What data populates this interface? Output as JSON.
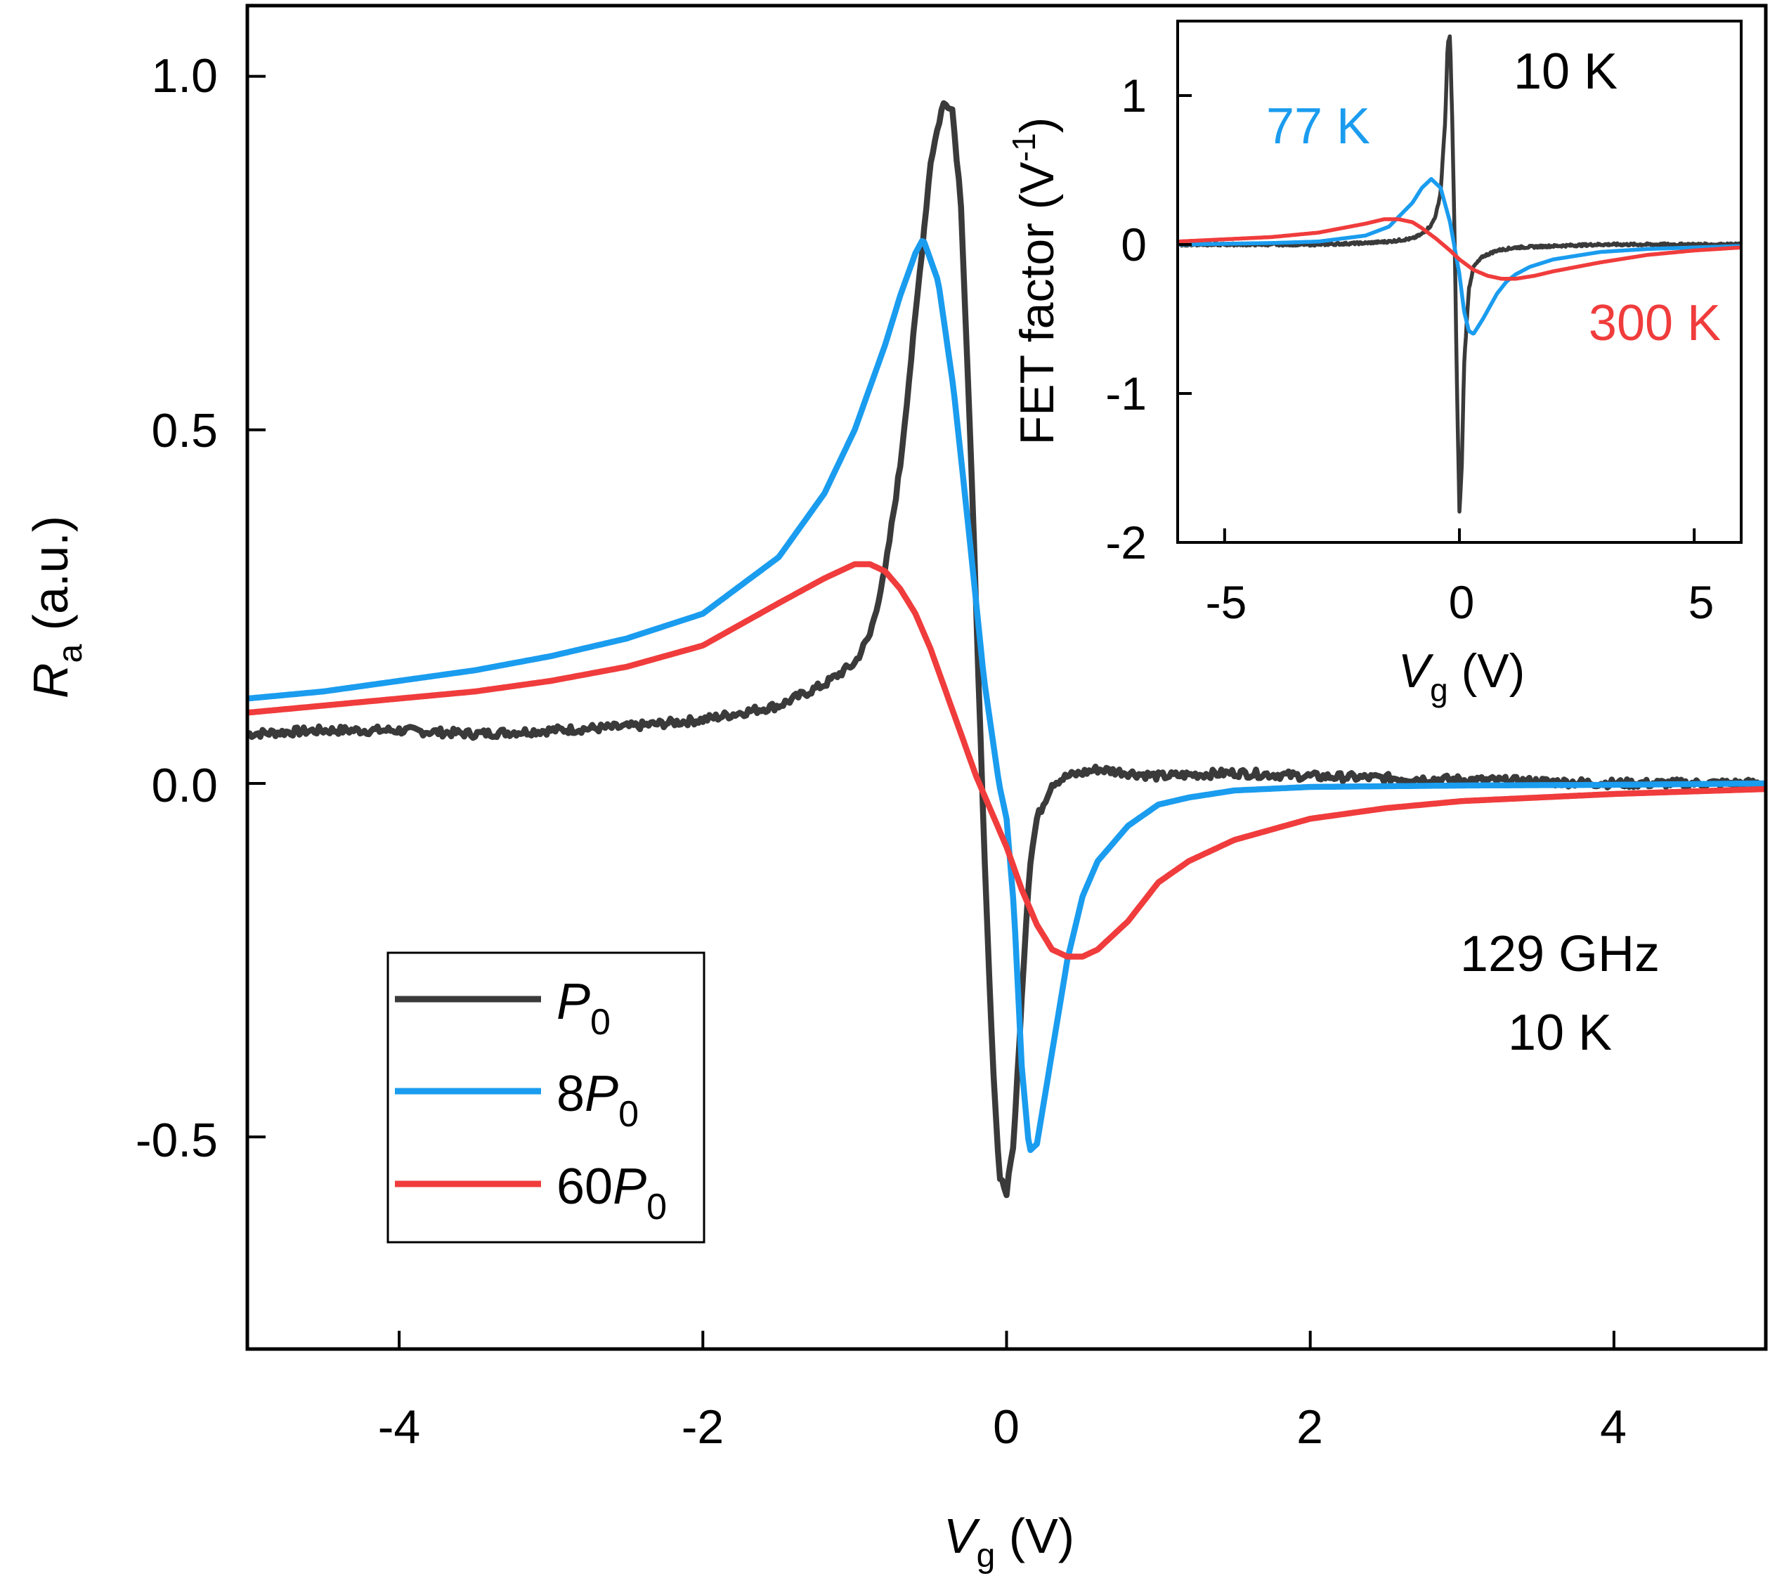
{
  "chart_data": [
    {
      "type": "line",
      "panel": "main",
      "xlabel": {
        "main": "V",
        "sub": "g",
        "unit": " (V)"
      },
      "ylabel": {
        "main": "R",
        "sub": "a",
        "unit": " (a.u.)"
      },
      "xlim": [
        -5,
        5
      ],
      "ylim": [
        -0.8,
        1.1
      ],
      "xticks": [
        -4,
        -2,
        0,
        2,
        4
      ],
      "xtick_labels": [
        "-4",
        "-2",
        "0",
        "2",
        "4"
      ],
      "yticks": [
        -0.5,
        0.0,
        0.5,
        1.0
      ],
      "ytick_labels": [
        "-0.5",
        "0.0",
        "0.5",
        "1.0"
      ],
      "annotation": {
        "line1": "129 GHz",
        "line2": "10 K"
      },
      "legend": {
        "position": "bottom-left",
        "entries": [
          {
            "prefix": "",
            "sym": "P",
            "sub": "0"
          },
          {
            "prefix": "8",
            "sym": "P",
            "sub": "0"
          },
          {
            "prefix": "60",
            "sym": "P",
            "sub": "0"
          }
        ]
      },
      "series": [
        {
          "name": "P0",
          "color": "#3a3a3a",
          "noise": 0.006,
          "x": [
            -5,
            -4.5,
            -4,
            -3.5,
            -3,
            -2.5,
            -2,
            -1.5,
            -1.2,
            -1.0,
            -0.9,
            -0.8,
            -0.7,
            -0.6,
            -0.5,
            -0.42,
            -0.36,
            -0.3,
            -0.25,
            -0.2,
            -0.15,
            -0.1,
            -0.05,
            0.0,
            0.05,
            0.1,
            0.15,
            0.2,
            0.3,
            0.4,
            0.5,
            0.6,
            0.8,
            1.0,
            1.5,
            2.0,
            3.0,
            4.0,
            5.0
          ],
          "y": [
            0.07,
            0.075,
            0.075,
            0.07,
            0.075,
            0.08,
            0.09,
            0.11,
            0.14,
            0.17,
            0.21,
            0.3,
            0.45,
            0.66,
            0.88,
            0.96,
            0.96,
            0.82,
            0.55,
            0.25,
            -0.08,
            -0.35,
            -0.55,
            -0.58,
            -0.5,
            -0.3,
            -0.12,
            -0.05,
            0.0,
            0.01,
            0.015,
            0.02,
            0.015,
            0.01,
            0.015,
            0.01,
            0.005,
            0.0,
            0.0
          ]
        },
        {
          "name": "8P0",
          "color": "#1a9cef",
          "noise": 0,
          "x": [
            -5,
            -4.5,
            -4,
            -3.5,
            -3,
            -2.5,
            -2,
            -1.5,
            -1.2,
            -1.0,
            -0.8,
            -0.7,
            -0.6,
            -0.55,
            -0.45,
            -0.35,
            -0.25,
            -0.15,
            -0.05,
            0.0,
            0.05,
            0.1,
            0.15,
            0.2,
            0.3,
            0.4,
            0.5,
            0.6,
            0.8,
            1.0,
            1.2,
            1.5,
            2.0,
            3.0,
            4.0,
            5.0
          ],
          "y": [
            0.12,
            0.13,
            0.145,
            0.16,
            0.18,
            0.205,
            0.24,
            0.32,
            0.41,
            0.5,
            0.62,
            0.69,
            0.75,
            0.77,
            0.71,
            0.56,
            0.36,
            0.15,
            0.0,
            -0.05,
            -0.18,
            -0.4,
            -0.52,
            -0.51,
            -0.38,
            -0.25,
            -0.16,
            -0.11,
            -0.06,
            -0.03,
            -0.02,
            -0.01,
            -0.005,
            -0.003,
            -0.002,
            0.0
          ]
        },
        {
          "name": "60P0",
          "color": "#f03c3c",
          "noise": 0,
          "x": [
            -5,
            -4.5,
            -4,
            -3.5,
            -3,
            -2.5,
            -2,
            -1.5,
            -1.2,
            -1.0,
            -0.9,
            -0.8,
            -0.7,
            -0.6,
            -0.5,
            -0.4,
            -0.3,
            -0.2,
            -0.1,
            0.0,
            0.1,
            0.2,
            0.3,
            0.4,
            0.5,
            0.6,
            0.8,
            1.0,
            1.2,
            1.5,
            2.0,
            2.5,
            3.0,
            4.0,
            5.0
          ],
          "y": [
            0.1,
            0.11,
            0.12,
            0.13,
            0.145,
            0.165,
            0.195,
            0.255,
            0.29,
            0.31,
            0.31,
            0.3,
            0.275,
            0.24,
            0.19,
            0.13,
            0.07,
            0.01,
            -0.04,
            -0.09,
            -0.15,
            -0.2,
            -0.235,
            -0.245,
            -0.245,
            -0.235,
            -0.195,
            -0.14,
            -0.11,
            -0.08,
            -0.05,
            -0.035,
            -0.025,
            -0.015,
            -0.008
          ]
        }
      ]
    },
    {
      "type": "line",
      "panel": "inset",
      "xlabel": {
        "main": "V",
        "sub": "g",
        "unit": " (V)"
      },
      "ylabel": {
        "text": "FET factor (V",
        "sup": "-1",
        "close": ")"
      },
      "xlim": [
        -6,
        6
      ],
      "ylim": [
        -2.0,
        1.5
      ],
      "xticks": [
        -5,
        0,
        5
      ],
      "xtick_labels": [
        "-5",
        "0",
        "5"
      ],
      "yticks": [
        -2,
        -1,
        0,
        1
      ],
      "ytick_labels": [
        "-2",
        "-1",
        "0",
        "1"
      ],
      "labels": {
        "t10": "10 K",
        "t77": "77 K",
        "t300": "300 K"
      },
      "series": [
        {
          "name": "10 K",
          "color": "#3a3a3a",
          "noise": 0.008,
          "x": [
            -6,
            -3,
            -2,
            -1.5,
            -1.0,
            -0.8,
            -0.6,
            -0.5,
            -0.4,
            -0.3,
            -0.25,
            -0.2,
            -0.15,
            -0.1,
            -0.05,
            0.0,
            0.05,
            0.1,
            0.2,
            0.3,
            0.5,
            0.8,
            1.2,
            2,
            3,
            6
          ],
          "y": [
            0.0,
            0.0,
            0.01,
            0.02,
            0.04,
            0.07,
            0.13,
            0.2,
            0.35,
            0.85,
            1.35,
            1.4,
            0.8,
            0.0,
            -1.0,
            -1.8,
            -1.5,
            -0.8,
            -0.3,
            -0.15,
            -0.08,
            -0.04,
            -0.02,
            -0.01,
            0.0,
            0.0
          ]
        },
        {
          "name": "77 K",
          "color": "#1a9cef",
          "noise": 0,
          "x": [
            -6,
            -4,
            -3,
            -2,
            -1.5,
            -1.0,
            -0.8,
            -0.6,
            -0.4,
            -0.2,
            0.0,
            0.1,
            0.2,
            0.3,
            0.5,
            0.8,
            1.0,
            1.2,
            1.5,
            2.0,
            3.0,
            4.0,
            6.0
          ],
          "y": [
            0.0,
            0.01,
            0.02,
            0.06,
            0.12,
            0.28,
            0.38,
            0.44,
            0.38,
            0.15,
            -0.2,
            -0.45,
            -0.58,
            -0.6,
            -0.5,
            -0.33,
            -0.25,
            -0.2,
            -0.15,
            -0.1,
            -0.05,
            -0.03,
            -0.01
          ]
        },
        {
          "name": "300 K",
          "color": "#f03c3c",
          "noise": 0,
          "x": [
            -6,
            -4,
            -3,
            -2.5,
            -2,
            -1.6,
            -1.3,
            -1.0,
            -0.8,
            -0.5,
            -0.2,
            0.0,
            0.3,
            0.6,
            0.9,
            1.2,
            1.6,
            2.0,
            3.0,
            4.0,
            5.0,
            6.0
          ],
          "y": [
            0.02,
            0.05,
            0.08,
            0.11,
            0.14,
            0.17,
            0.17,
            0.15,
            0.11,
            0.04,
            -0.04,
            -0.1,
            -0.17,
            -0.21,
            -0.23,
            -0.23,
            -0.21,
            -0.18,
            -0.12,
            -0.07,
            -0.04,
            -0.02
          ]
        }
      ]
    }
  ]
}
